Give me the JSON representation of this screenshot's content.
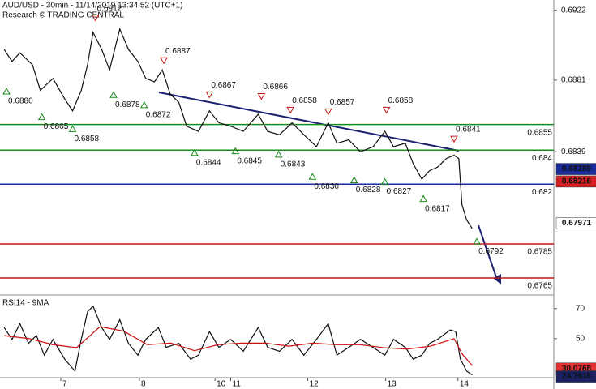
{
  "chart_data": [
    {
      "type": "line",
      "title": "AUD/USD - 30min - 11/14/2019 13:34:52 (UTC+1)",
      "subtitle": "Research © TRADING CENTRAL",
      "xlim": [
        0.227,
        7.268
      ],
      "xticks": [
        {
          "value": 1.0,
          "label": "7"
        },
        {
          "value": 2.0,
          "label": "8"
        },
        {
          "value": 2.96,
          "label": "10"
        },
        {
          "value": 3.16,
          "label": "11"
        },
        {
          "value": 4.14,
          "label": "12"
        },
        {
          "value": 5.13,
          "label": "13"
        },
        {
          "value": 6.05,
          "label": "14"
        }
      ],
      "ylim": [
        0.6756,
        0.6928
      ],
      "yticks": [
        0.6922,
        0.6881,
        0.6839
      ],
      "series": [
        {
          "color": "#111111",
          "x": [
            0.28,
            0.38,
            0.48,
            0.64,
            0.74,
            0.9,
            1.05,
            1.15,
            1.26,
            1.34,
            1.41,
            1.52,
            1.62,
            1.75,
            1.86,
            1.98,
            2.08,
            2.19,
            2.29,
            2.39,
            2.5,
            2.6,
            2.75,
            2.89,
            3.01,
            3.16,
            3.32,
            3.51,
            3.63,
            3.78,
            3.94,
            4.09,
            4.25,
            4.4,
            4.51,
            4.66,
            4.81,
            4.97,
            5.12,
            5.23,
            5.38,
            5.48,
            5.59,
            5.69,
            5.79,
            5.9,
            6.0,
            6.06,
            6.1,
            6.16,
            6.23
          ],
          "values": [
            0.6899,
            0.6892,
            0.6897,
            0.689,
            0.6875,
            0.6882,
            0.687,
            0.6863,
            0.6875,
            0.689,
            0.6909,
            0.6899,
            0.6887,
            0.6911,
            0.6899,
            0.6892,
            0.6882,
            0.688,
            0.6887,
            0.6873,
            0.6868,
            0.6854,
            0.6851,
            0.6863,
            0.6856,
            0.6854,
            0.6851,
            0.6861,
            0.6851,
            0.6849,
            0.6856,
            0.6849,
            0.6842,
            0.6856,
            0.6844,
            0.6846,
            0.6839,
            0.6842,
            0.6851,
            0.6842,
            0.6844,
            0.6832,
            0.6823,
            0.6828,
            0.683,
            0.6835,
            0.6837,
            0.6835,
            0.6808,
            0.6799,
            0.6794
          ]
        }
      ],
      "levels": [
        {
          "value": 0.6855,
          "label": "0.6855",
          "color": "#1a8a1a"
        },
        {
          "value": 0.684,
          "label": "0.684",
          "color": "#1a8a1a"
        },
        {
          "value": 0.682,
          "label": "0.682",
          "color": "#1a2a9a"
        },
        {
          "value": 0.6785,
          "label": "0.6785",
          "color": "#c01818"
        },
        {
          "value": 0.6765,
          "label": "0.6765",
          "color": "#c01818"
        }
      ],
      "tags": [
        {
          "value": 0.68289,
          "color": "#1a2a9a",
          "text_color": "#ffffff"
        },
        {
          "value": 0.68216,
          "color": "#d42020",
          "text_color": "#ffffff"
        },
        {
          "value": 0.67971,
          "color": "#ffffff",
          "text_color": "#000000"
        }
      ],
      "annotations": [
        {
          "x": 0.31,
          "value": 0.688,
          "label": "0.6880",
          "kind": "up"
        },
        {
          "x": 0.76,
          "value": 0.6865,
          "label": "0.6865",
          "kind": "up"
        },
        {
          "x": 1.15,
          "value": 0.6858,
          "label": "0.6858",
          "kind": "up"
        },
        {
          "x": 1.44,
          "value": 0.6912,
          "label": "0.6912",
          "kind": "down"
        },
        {
          "x": 1.67,
          "value": 0.6878,
          "label": "0.6878",
          "kind": "up"
        },
        {
          "x": 2.06,
          "value": 0.6872,
          "label": "0.6872",
          "kind": "up"
        },
        {
          "x": 2.31,
          "value": 0.6887,
          "label": "0.6887",
          "kind": "down"
        },
        {
          "x": 2.7,
          "value": 0.6844,
          "label": "0.6844",
          "kind": "up"
        },
        {
          "x": 2.89,
          "value": 0.6867,
          "label": "0.6867",
          "kind": "down"
        },
        {
          "x": 3.22,
          "value": 0.6845,
          "label": "0.6845",
          "kind": "up"
        },
        {
          "x": 3.55,
          "value": 0.6866,
          "label": "0.6866",
          "kind": "down"
        },
        {
          "x": 3.77,
          "value": 0.6843,
          "label": "0.6843",
          "kind": "up"
        },
        {
          "x": 3.92,
          "value": 0.6858,
          "label": "0.6858",
          "kind": "down"
        },
        {
          "x": 4.2,
          "value": 0.683,
          "label": "0.6830",
          "kind": "up"
        },
        {
          "x": 4.4,
          "value": 0.6857,
          "label": "0.6857",
          "kind": "down"
        },
        {
          "x": 4.73,
          "value": 0.6828,
          "label": "0.6828",
          "kind": "up"
        },
        {
          "x": 5.14,
          "value": 0.6858,
          "label": "0.6858",
          "kind": "down"
        },
        {
          "x": 5.12,
          "value": 0.6827,
          "label": "0.6827",
          "kind": "up"
        },
        {
          "x": 5.61,
          "value": 0.6817,
          "label": "0.6817",
          "kind": "up"
        },
        {
          "x": 6.0,
          "value": 0.6841,
          "label": "0.6841",
          "kind": "down"
        },
        {
          "x": 6.29,
          "value": 0.6792,
          "label": "0.6792",
          "kind": "up"
        }
      ]
    },
    {
      "type": "line",
      "title": "RSI14 - 9MA",
      "xlim": [
        0.227,
        7.268
      ],
      "ylim": [
        24,
        78
      ],
      "yticks": [
        70,
        50
      ],
      "series": [
        {
          "color": "#111111",
          "x": [
            0.28,
            0.38,
            0.48,
            0.59,
            0.69,
            0.79,
            0.9,
            1.05,
            1.18,
            1.26,
            1.34,
            1.41,
            1.52,
            1.62,
            1.75,
            1.86,
            1.98,
            2.08,
            2.24,
            2.34,
            2.5,
            2.65,
            2.75,
            2.89,
            3.01,
            3.16,
            3.32,
            3.51,
            3.63,
            3.78,
            3.94,
            4.09,
            4.25,
            4.4,
            4.51,
            4.66,
            4.81,
            4.97,
            5.12,
            5.23,
            5.38,
            5.48,
            5.59,
            5.69,
            5.79,
            5.95,
            6.02,
            6.08,
            6.16,
            6.23
          ],
          "values": [
            57.4,
            49.5,
            60.0,
            46.9,
            52.1,
            39.0,
            49.5,
            36.3,
            28.4,
            49.5,
            67.9,
            71.6,
            57.4,
            49.5,
            62.6,
            46.9,
            39.0,
            49.5,
            57.4,
            44.2,
            46.9,
            36.3,
            39.0,
            54.7,
            44.2,
            49.5,
            41.6,
            57.4,
            44.2,
            41.6,
            49.5,
            39.0,
            49.5,
            60.0,
            39.0,
            44.2,
            49.5,
            44.2,
            39.0,
            49.5,
            44.2,
            36.3,
            39.0,
            46.9,
            49.5,
            55.8,
            54.7,
            36.3,
            28.4,
            25.8
          ]
        },
        {
          "color": "#cc1111",
          "x": [
            0.28,
            0.6,
            0.9,
            1.2,
            1.5,
            1.8,
            2.1,
            2.4,
            2.7,
            3.0,
            3.3,
            3.6,
            3.9,
            4.2,
            4.5,
            4.8,
            5.1,
            5.4,
            5.7,
            6.0,
            6.1,
            6.23
          ],
          "values": [
            52,
            50,
            46,
            44,
            58,
            55,
            46,
            47,
            42,
            46,
            47,
            47,
            45,
            47,
            46,
            46,
            44,
            43,
            45,
            50,
            40,
            32
          ]
        }
      ],
      "tags": [
        {
          "value": 30.0768,
          "color": "#e03030",
          "text_color": "#000000"
        },
        {
          "value": 24.7618,
          "color": "#1a2060",
          "text_color": "#ffffff"
        }
      ]
    }
  ]
}
